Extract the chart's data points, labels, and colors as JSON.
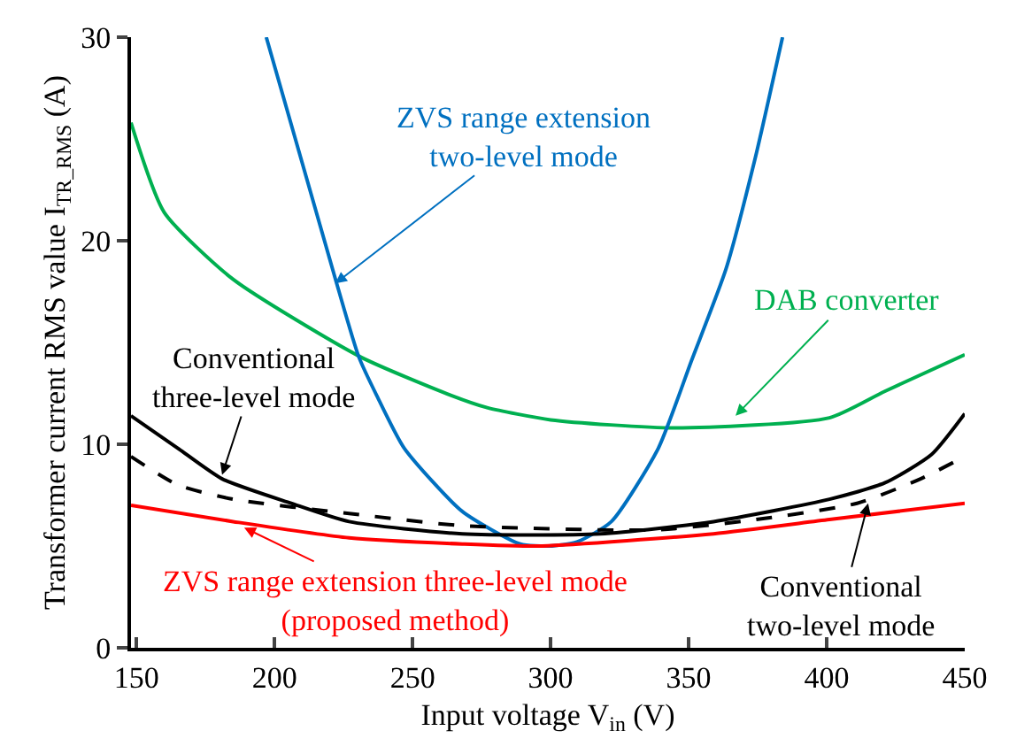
{
  "chart_data": {
    "type": "line",
    "xlabel": "Input voltage V$_{in}$ (V)",
    "ylabel": "Transformer current RMS value I$_{TR_RMS}$ (A)",
    "xlim": [
      148,
      450
    ],
    "xticks": [
      150,
      200,
      250,
      300,
      350,
      400,
      450
    ],
    "ylim": [
      0,
      30
    ],
    "yticks": [
      0,
      10,
      20,
      30
    ],
    "series": [
      {
        "color": "#00b050",
        "x": [
          148,
          160,
          185,
          231,
          264,
          277,
          300,
          345,
          401,
          421,
          450
        ],
        "values": [
          25.8,
          21.4,
          18.1,
          14.3,
          12.4,
          11.8,
          11.2,
          10.8,
          11.3,
          12.6,
          14.4
        ]
      },
      {
        "color": "#0070c0",
        "x": [
          197,
          222.5,
          230.5,
          237,
          247,
          268,
          289,
          299.5,
          309.5,
          322,
          339,
          351,
          363.5,
          374,
          384
        ],
        "values": [
          30,
          17.9,
          14.3,
          12.4,
          9.8,
          6.7,
          5.1,
          5.0,
          5.2,
          6.2,
          9.8,
          14.1,
          18.6,
          24,
          30
        ]
      },
      {
        "color": "#000000",
        "x": [
          148,
          165,
          181,
          206,
          227,
          268,
          318,
          359,
          401,
          421,
          438,
          450
        ],
        "values": [
          11.4,
          9.8,
          8.3,
          7.1,
          6.2,
          5.6,
          5.6,
          6.2,
          7.3,
          8.1,
          9.5,
          11.5
        ]
      },
      {
        "color": "#000000",
        "line_style": "dashed",
        "x": [
          148,
          165,
          185,
          227,
          268,
          339,
          380,
          411,
          434,
          450
        ],
        "values": [
          9.4,
          8.0,
          7.3,
          6.6,
          6.0,
          5.8,
          6.4,
          7.1,
          8.3,
          9.4
        ]
      },
      {
        "color": "#ff0000",
        "x": [
          148,
          185,
          227,
          268,
          297,
          359,
          401,
          450
        ],
        "values": [
          7.0,
          6.2,
          5.4,
          5.1,
          5.0,
          5.6,
          6.3,
          7.1
        ]
      }
    ],
    "annotations": [
      {
        "text": "ZVS range extension\ntwo-level mode",
        "x": 222,
        "y": 17.9
      },
      {
        "text": "DAB converter",
        "x": 367,
        "y": 11.4
      },
      {
        "text": "Conventional\nthree-level mode",
        "x": 181,
        "y": 8.5
      },
      {
        "text": "ZVS range extension three-level mode\n(proposed method)",
        "x": 189,
        "y": 5.9
      },
      {
        "text": "Conventional\ntwo-level mode",
        "x": 415,
        "y": 7.1
      }
    ]
  }
}
